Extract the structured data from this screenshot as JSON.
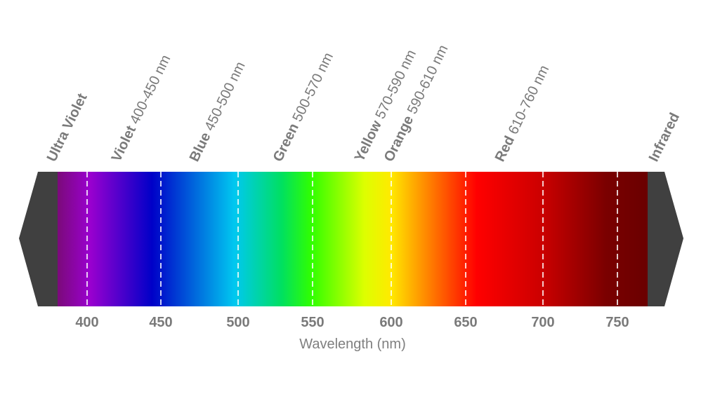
{
  "diagram": {
    "axis_title": "Wavelength (nm)",
    "ticks": [
      "400",
      "450",
      "500",
      "550",
      "600",
      "650",
      "700",
      "750"
    ],
    "labels": [
      {
        "name": "Ultra Violet",
        "range": ""
      },
      {
        "name": "Violet",
        "range": "400-450 nm"
      },
      {
        "name": "Blue",
        "range": "450-500 nm"
      },
      {
        "name": "Green",
        "range": "500-570 nm"
      },
      {
        "name": "Yellow",
        "range": "570-590 nm"
      },
      {
        "name": "Orange",
        "range": "590-610 nm"
      },
      {
        "name": "Red",
        "range": "610-760 nm"
      },
      {
        "name": "Infrared",
        "range": ""
      }
    ],
    "colors": {
      "text": "#7a7a7a",
      "end_caps": "#404040",
      "dividers": "#ffffff",
      "gradient": [
        "#7b0a7a",
        "#9a00cf",
        "#0000c8",
        "#00c8f0",
        "#00e060",
        "#30ff00",
        "#ddff00",
        "#ffea00",
        "#ffb000",
        "#ff5000",
        "#ff0000",
        "#cc0000",
        "#7a0000",
        "#6a0000"
      ]
    }
  }
}
